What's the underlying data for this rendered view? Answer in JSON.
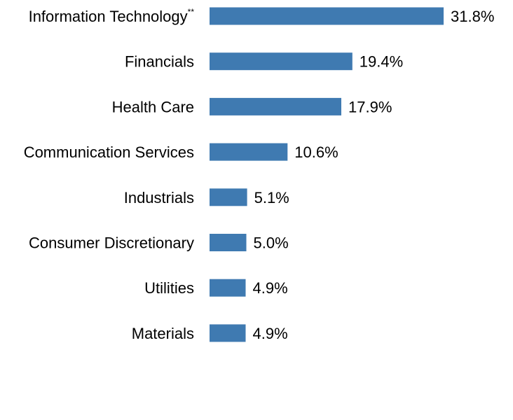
{
  "chart_data": {
    "type": "bar",
    "orientation": "horizontal",
    "categories": [
      "Information Technology",
      "Financials",
      "Health Care",
      "Communication Services",
      "Industrials",
      "Consumer Discretionary",
      "Utilities",
      "Materials"
    ],
    "category_markers": [
      "**",
      "",
      "",
      "",
      "",
      "",
      "",
      ""
    ],
    "values": [
      31.8,
      19.4,
      17.9,
      10.6,
      5.1,
      5.0,
      4.9,
      4.9
    ],
    "value_labels": [
      "31.8%",
      "19.4%",
      "17.9%",
      "10.6%",
      "5.1%",
      "5.0%",
      "4.9%",
      "4.9%"
    ],
    "xlim": [
      0,
      31.8
    ],
    "grid": false,
    "legend": "none",
    "bar_color": "#3F7AB1"
  }
}
